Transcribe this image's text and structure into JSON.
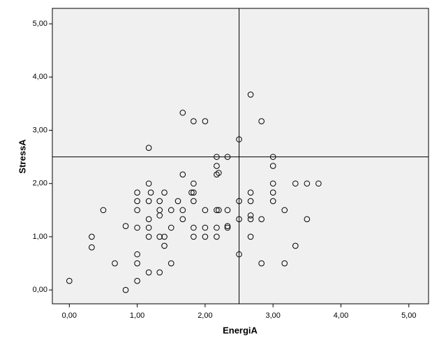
{
  "chart_data": {
    "type": "scatter",
    "x_label": "EnergiA",
    "y_label": "StressA",
    "xlim": [
      -0.25,
      5.29
    ],
    "ylim": [
      -0.26,
      5.29
    ],
    "xticks": [
      {
        "value": 0,
        "label": "0,00"
      },
      {
        "value": 1,
        "label": "1,00"
      },
      {
        "value": 2,
        "label": "2,00"
      },
      {
        "value": 3,
        "label": "3,00"
      },
      {
        "value": 4,
        "label": "4,00"
      },
      {
        "value": 5,
        "label": "5,00"
      }
    ],
    "yticks": [
      {
        "value": 0,
        "label": "0,00"
      },
      {
        "value": 1,
        "label": "1,00"
      },
      {
        "value": 2,
        "label": "2,00"
      },
      {
        "value": 3,
        "label": "3,00"
      },
      {
        "value": 4,
        "label": "4,00"
      },
      {
        "value": 5,
        "label": "5,00"
      }
    ],
    "reference_lines": {
      "x": 2.5,
      "y": 2.5
    },
    "color": "#000000",
    "background": "#f0f0f0",
    "series": [
      {
        "name": "StressA",
        "color": "#000000",
        "x": [
          0,
          0.33,
          0.33,
          0.5,
          0.67,
          0.83,
          0.83,
          1.0,
          1.0,
          1.0,
          1.0,
          1.0,
          1.0,
          1.0,
          1.17,
          1.17,
          1.17,
          1.17,
          1.17,
          1.17,
          1.17,
          1.2,
          1.33,
          1.33,
          1.33,
          1.33,
          1.33,
          1.4,
          1.4,
          1.4,
          1.5,
          1.5,
          1.5,
          1.6,
          1.67,
          1.67,
          1.67,
          1.67,
          1.8,
          1.83,
          1.83,
          1.83,
          1.83,
          1.83,
          1.83,
          2.0,
          2.0,
          2.0,
          2.0,
          2.17,
          2.17,
          2.17,
          2.2,
          2.17,
          2.2,
          2.17,
          2.17,
          2.33,
          2.33,
          2.33,
          2.33,
          2.5,
          2.5,
          2.5,
          2.5,
          2.67,
          2.67,
          2.67,
          2.67,
          2.67,
          2.67,
          2.83,
          2.83,
          2.83,
          3.0,
          3.0,
          3.0,
          3.0,
          3.0,
          3.17,
          3.17,
          3.33,
          3.33,
          3.5,
          3.5,
          3.67
        ],
        "values": [
          0.17,
          1.0,
          0.8,
          1.5,
          0.5,
          1.2,
          0.0,
          1.83,
          1.67,
          1.5,
          1.17,
          0.67,
          0.5,
          0.17,
          2.67,
          2.0,
          1.67,
          1.33,
          1.17,
          1.0,
          0.33,
          1.83,
          1.67,
          1.5,
          1.4,
          1.0,
          0.33,
          1.83,
          1.0,
          0.83,
          1.5,
          1.17,
          0.5,
          1.67,
          3.33,
          2.17,
          1.5,
          1.33,
          1.83,
          3.17,
          2.0,
          1.83,
          1.67,
          1.17,
          1.0,
          3.17,
          1.5,
          1.17,
          1.0,
          2.5,
          2.33,
          2.17,
          2.2,
          1.5,
          1.5,
          1.17,
          1.0,
          2.5,
          1.5,
          1.2,
          1.17,
          2.83,
          1.67,
          1.33,
          0.67,
          3.67,
          1.83,
          1.67,
          1.4,
          1.33,
          1.0,
          3.17,
          1.33,
          0.5,
          2.5,
          2.33,
          2.0,
          1.83,
          1.67,
          1.5,
          0.5,
          2.0,
          0.83,
          2.0,
          1.33,
          2.0
        ]
      }
    ]
  }
}
